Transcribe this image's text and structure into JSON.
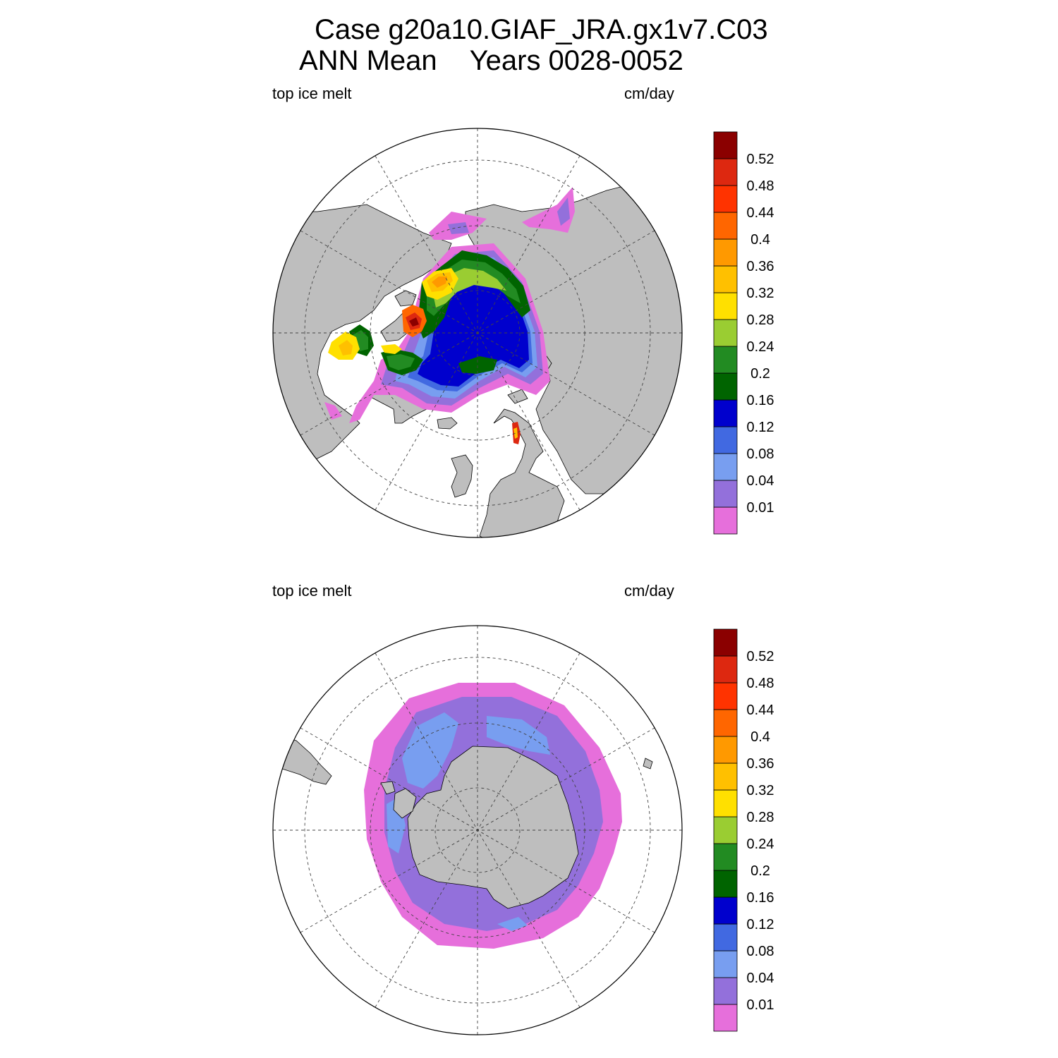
{
  "figure": {
    "title_line1": "Case g20a10.GIAF_JRA.gx1v7.C03",
    "title_line2_left": "ANN Mean",
    "title_line2_right": "Years 0028-0052"
  },
  "colors": {
    "land": "#bebebe",
    "ocean": "#ffffff",
    "levels": [
      "#e66fdb",
      "#9370db",
      "#789ef0",
      "#4169e1",
      "#0000cd",
      "#006400",
      "#228b22",
      "#9acd32",
      "#ffe000",
      "#ffc000",
      "#ff9900",
      "#ff6600",
      "#ff3300",
      "#dd2810",
      "#8b0000"
    ]
  },
  "chart_data": [
    {
      "type": "heatmap",
      "projection": "polar-stereographic",
      "hemisphere": "north",
      "left_label": "top ice melt",
      "right_label": "cm/day",
      "colorbar_labels": [
        "0.01",
        "0.04",
        "0.08",
        "0.12",
        "0.16",
        "0.2",
        "0.24",
        "0.28",
        "0.32",
        "0.36",
        "0.4",
        "0.44",
        "0.48",
        "0.52"
      ],
      "levels": [
        0.01,
        0.04,
        0.08,
        0.12,
        0.16,
        0.2,
        0.24,
        0.28,
        0.32,
        0.36,
        0.4,
        0.44,
        0.48,
        0.52
      ],
      "vmin": 0,
      "vmax": 0.56
    },
    {
      "type": "heatmap",
      "projection": "polar-stereographic",
      "hemisphere": "south",
      "left_label": "top ice melt",
      "right_label": "cm/day",
      "colorbar_labels": [
        "0.01",
        "0.04",
        "0.08",
        "0.12",
        "0.16",
        "0.2",
        "0.24",
        "0.28",
        "0.32",
        "0.36",
        "0.4",
        "0.44",
        "0.48",
        "0.52"
      ],
      "levels": [
        0.01,
        0.04,
        0.08,
        0.12,
        0.16,
        0.2,
        0.24,
        0.28,
        0.32,
        0.36,
        0.4,
        0.44,
        0.48,
        0.52
      ],
      "vmin": 0,
      "vmax": 0.56
    }
  ]
}
